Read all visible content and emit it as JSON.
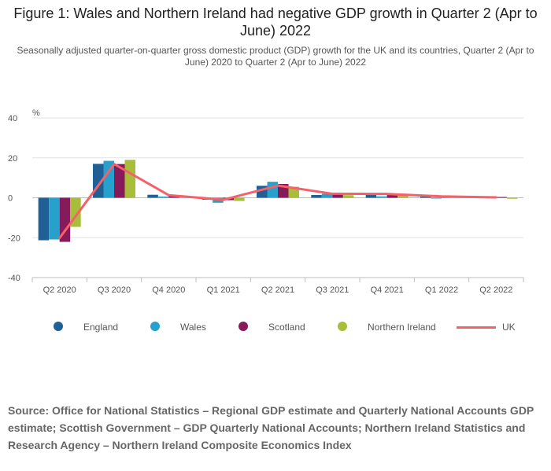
{
  "title": "Figure 1: Wales and Northern Ireland had negative GDP growth in Quarter 2 (Apr to June) 2022",
  "subtitle": "Seasonally adjusted quarter-on-quarter gross domestic product (GDP) growth for the UK and its countries, Quarter 2 (Apr to June) 2020 to Quarter 2 (Apr to June) 2022",
  "source": "Source: Office for National Statistics – Regional GDP estimate and Quarterly National Accounts GDP estimate; Scottish Government – GDP Quarterly National Accounts; Northern Ireland Statistics and Research Agency – Northern Ireland Composite Economics Index",
  "colors": {
    "england": "#206095",
    "wales": "#27a0cc",
    "scotland": "#871a5b",
    "northern_ireland": "#a8bd3a",
    "uk": "#f66068",
    "grid": "#e2e2e3",
    "axis": "#bebebe"
  },
  "legend": [
    {
      "name": "England",
      "kind": "dot",
      "color_key": "england"
    },
    {
      "name": "Wales",
      "kind": "dot",
      "color_key": "wales"
    },
    {
      "name": "Scotland",
      "kind": "dot",
      "color_key": "scotland"
    },
    {
      "name": "Northern Ireland",
      "kind": "dot",
      "color_key": "northern_ireland"
    },
    {
      "name": "UK",
      "kind": "line",
      "color_key": "uk"
    }
  ],
  "chart_data": {
    "type": "bar",
    "title": "Figure 1: Wales and Northern Ireland had negative GDP growth in Quarter 2 (Apr to June) 2022",
    "ylabel": "%",
    "xlabel": "",
    "ylim": [
      -40,
      40
    ],
    "yticks": [
      40,
      20,
      0,
      -20,
      -40
    ],
    "grid": true,
    "legend_position": "bottom",
    "categories": [
      "Q2 2020",
      "Q3 2020",
      "Q4 2020",
      "Q1 2021",
      "Q2 2021",
      "Q3 2021",
      "Q4 2021",
      "Q1 2022",
      "Q2 2022"
    ],
    "series": [
      {
        "name": "England",
        "type": "bar",
        "values": [
          -21.3,
          17.0,
          1.5,
          -1.0,
          6.0,
          1.4,
          1.4,
          0.7,
          0.2
        ]
      },
      {
        "name": "Wales",
        "type": "bar",
        "values": [
          -20.9,
          18.5,
          0.6,
          -2.5,
          8.0,
          2.0,
          0.7,
          -0.4,
          -0.3
        ]
      },
      {
        "name": "Scotland",
        "type": "bar",
        "values": [
          -22.1,
          16.9,
          1.0,
          -1.2,
          6.9,
          2.3,
          1.6,
          0.6,
          0.4
        ]
      },
      {
        "name": "Northern Ireland",
        "type": "bar",
        "values": [
          -14.6,
          19.0,
          0.5,
          -1.6,
          5.5,
          1.3,
          1.2,
          0.3,
          -0.5
        ]
      },
      {
        "name": "UK",
        "type": "line",
        "values": [
          -20.2,
          16.9,
          1.3,
          -1.0,
          6.1,
          2.0,
          1.9,
          0.7,
          0.2
        ]
      }
    ]
  }
}
